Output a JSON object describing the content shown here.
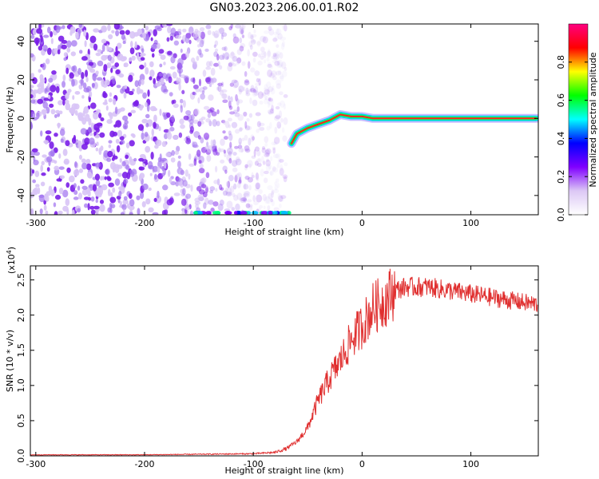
{
  "title": "GN03.2023.206.00.01.R02",
  "chart_data": [
    {
      "type": "heatmap",
      "name": "spectrogram",
      "xlabel": "Height of straight line (km)",
      "ylabel": "Frequency (Hz)",
      "xlim": [
        -305,
        162
      ],
      "ylim": [
        -50,
        49
      ],
      "xticks": [
        -300,
        -200,
        -100,
        0,
        100
      ],
      "xtick_labels": [
        "-300",
        "-200",
        "-100",
        "0",
        "100"
      ],
      "yticks": [
        -40,
        -20,
        0,
        20,
        40
      ],
      "ytick_labels": [
        "-40",
        "-20",
        "0",
        "20",
        "40"
      ],
      "colorbar": {
        "label": "Normalized spectral amplitude",
        "range": [
          0,
          1
        ],
        "ticks": [
          0,
          0.2,
          0.4,
          0.6,
          0.8
        ],
        "tick_labels": [
          "0.0",
          "0.2",
          "0.4",
          "0.6",
          "0.8"
        ],
        "colormap": [
          "#ffffff",
          "#dcc8f5",
          "#8000ff",
          "#0000ff",
          "#00ffff",
          "#00ff00",
          "#ffff00",
          "#ff0000",
          "#ff0080"
        ]
      },
      "features": {
        "noise_region_x": [
          -305,
          -90
        ],
        "carrier_track": {
          "x": [
            -65,
            -60,
            -50,
            -40,
            -30,
            -20,
            -10,
            0,
            10,
            30,
            60,
            100,
            140,
            160
          ],
          "y": [
            -13,
            -8,
            -5,
            -3,
            -1,
            2,
            1,
            1,
            0,
            0,
            0,
            0,
            0,
            0
          ]
        },
        "low_edge_band_x": [
          -155,
          -65
        ]
      }
    },
    {
      "type": "line",
      "name": "snr",
      "xlabel": "Height of straight line (km)",
      "ylabel": "SNR (10 * v/v)",
      "multiplier_label": "(x10",
      "multiplier_exp": "4",
      "xlim": [
        -305,
        162
      ],
      "ylim": [
        0,
        27000
      ],
      "xticks": [
        -300,
        -200,
        -100,
        0,
        100
      ],
      "xtick_labels": [
        "-300",
        "-200",
        "-100",
        "0",
        "100"
      ],
      "yticks": [
        0,
        5000,
        10000,
        15000,
        20000,
        25000
      ],
      "ytick_labels": [
        "0.0",
        "0.5",
        "1.0",
        "1.5",
        "2.0",
        "2.5"
      ],
      "color": "#e03030",
      "series": [
        {
          "x": [
            -305,
            -200,
            -100,
            -80,
            -70,
            -60,
            -50,
            -40,
            -30,
            -20,
            -10,
            0,
            10,
            20,
            30,
            40,
            60,
            80,
            100,
            120,
            140,
            162
          ],
          "y": [
            150,
            150,
            300,
            500,
            1000,
            2000,
            4000,
            8000,
            11000,
            13500,
            16500,
            18500,
            21000,
            22000,
            23500,
            24000,
            24000,
            23500,
            23000,
            22500,
            22000,
            21500
          ]
        }
      ]
    }
  ]
}
